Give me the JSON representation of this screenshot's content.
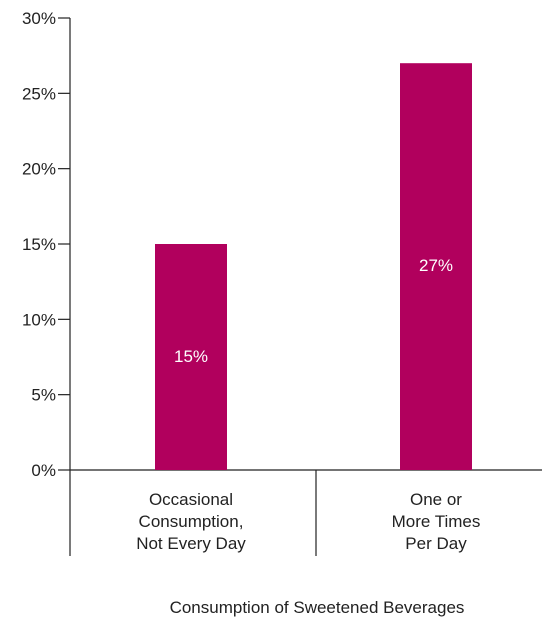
{
  "chart_data": {
    "type": "bar",
    "categories": [
      [
        "Occasional",
        "Consumption,",
        "Not Every Day"
      ],
      [
        "One or",
        "More Times",
        "Per Day"
      ]
    ],
    "values": [
      15,
      27
    ],
    "data_labels": [
      "15%",
      "27%"
    ],
    "xlabel": "Consumption of Sweetened Beverages",
    "ylabel": "",
    "ylim": [
      0,
      30
    ],
    "y_ticks": [
      0,
      5,
      10,
      15,
      20,
      25,
      30
    ],
    "y_tick_labels": [
      "0%",
      "5%",
      "10%",
      "15%",
      "20%",
      "25%",
      "30%"
    ],
    "bar_color": "#B1005D",
    "data_label_color": "#ffffff",
    "axis_color": "#222222",
    "grid": false,
    "legend": "none"
  }
}
